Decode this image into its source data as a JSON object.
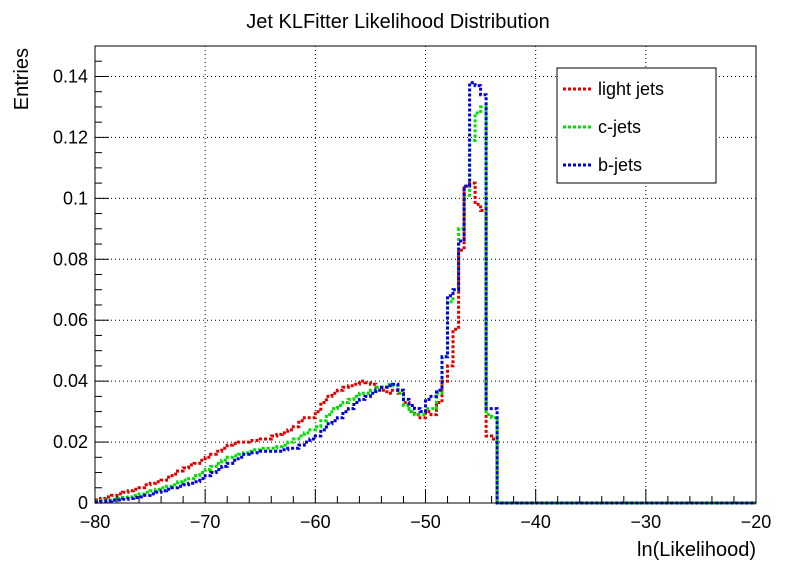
{
  "chart_data": {
    "type": "line",
    "title": "Jet KLFitter Likelihood Distribution",
    "xlabel": "ln(Likelihood)",
    "ylabel": "Entries",
    "xlim": [
      -80,
      -20
    ],
    "ylim": [
      0,
      0.15
    ],
    "x_ticks": [
      -80,
      -70,
      -60,
      -50,
      -40,
      -30,
      -20
    ],
    "x_tick_labels": [
      "−80",
      "−70",
      "−60",
      "−50",
      "−40",
      "−30",
      "−20"
    ],
    "y_ticks": [
      0,
      0.02,
      0.04,
      0.06,
      0.08,
      0.1,
      0.12,
      0.14
    ],
    "y_tick_labels": [
      "0",
      "0.02",
      "0.04",
      "0.06",
      "0.08",
      "0.1",
      "0.12",
      "0.14"
    ],
    "grid": true,
    "legend_position": "top-right",
    "bin_width": 0.5,
    "x": [
      -80,
      -79.5,
      -79,
      -78.5,
      -78,
      -77.5,
      -77,
      -76.5,
      -76,
      -75.5,
      -75,
      -74.5,
      -74,
      -73.5,
      -73,
      -72.5,
      -72,
      -71.5,
      -71,
      -70.5,
      -70,
      -69.5,
      -69,
      -68.5,
      -68,
      -67.5,
      -67,
      -66.5,
      -66,
      -65.5,
      -65,
      -64.5,
      -64,
      -63.5,
      -63,
      -62.5,
      -62,
      -61.5,
      -61,
      -60.5,
      -60,
      -59.5,
      -59,
      -58.5,
      -58,
      -57.5,
      -57,
      -56.5,
      -56,
      -55.5,
      -55,
      -54.5,
      -54,
      -53.5,
      -53,
      -52.5,
      -52,
      -51.5,
      -51,
      -50.5,
      -50,
      -49.5,
      -49,
      -48.5,
      -48,
      -47.5,
      -47,
      -46.5,
      -46,
      -45.5,
      -45,
      -44.5,
      -44,
      -43.5,
      -43
    ],
    "series": [
      {
        "name": "light jets",
        "color": "#e00000",
        "values": [
          0.001,
          0.0015,
          0.002,
          0.0025,
          0.003,
          0.0035,
          0.004,
          0.0045,
          0.005,
          0.006,
          0.0065,
          0.007,
          0.0075,
          0.0085,
          0.0095,
          0.0105,
          0.0115,
          0.0125,
          0.013,
          0.014,
          0.015,
          0.016,
          0.017,
          0.018,
          0.019,
          0.0195,
          0.02,
          0.02,
          0.0205,
          0.0205,
          0.021,
          0.021,
          0.022,
          0.0225,
          0.023,
          0.024,
          0.025,
          0.027,
          0.028,
          0.028,
          0.03,
          0.033,
          0.035,
          0.036,
          0.037,
          0.038,
          0.0385,
          0.039,
          0.04,
          0.0395,
          0.039,
          0.038,
          0.037,
          0.036,
          0.037,
          0.036,
          0.033,
          0.03,
          0.029,
          0.028,
          0.03,
          0.029,
          0.033,
          0.04,
          0.045,
          0.057,
          0.083,
          0.104,
          0.105,
          0.098,
          0.096,
          0.022,
          0.021,
          0.0,
          0.0
        ]
      },
      {
        "name": "c-jets",
        "color": "#00e000",
        "values": [
          0.0005,
          0.0008,
          0.001,
          0.0012,
          0.0015,
          0.0018,
          0.002,
          0.0025,
          0.003,
          0.0035,
          0.004,
          0.0045,
          0.005,
          0.0055,
          0.006,
          0.007,
          0.0075,
          0.008,
          0.009,
          0.01,
          0.011,
          0.012,
          0.013,
          0.014,
          0.015,
          0.0155,
          0.016,
          0.0165,
          0.017,
          0.0175,
          0.018,
          0.018,
          0.018,
          0.0185,
          0.019,
          0.02,
          0.021,
          0.022,
          0.023,
          0.024,
          0.025,
          0.027,
          0.029,
          0.031,
          0.032,
          0.033,
          0.034,
          0.035,
          0.036,
          0.036,
          0.037,
          0.038,
          0.038,
          0.039,
          0.0385,
          0.036,
          0.032,
          0.03,
          0.029,
          0.029,
          0.031,
          0.031,
          0.036,
          0.048,
          0.066,
          0.07,
          0.09,
          0.101,
          0.119,
          0.128,
          0.13,
          0.029,
          0.028,
          0.0,
          0.0
        ]
      },
      {
        "name": "b-jets",
        "color": "#0000e0",
        "values": [
          0.0003,
          0.0005,
          0.0007,
          0.0009,
          0.001,
          0.0012,
          0.0015,
          0.0018,
          0.002,
          0.0025,
          0.003,
          0.0035,
          0.004,
          0.0045,
          0.005,
          0.0055,
          0.006,
          0.0065,
          0.007,
          0.008,
          0.009,
          0.01,
          0.011,
          0.012,
          0.013,
          0.014,
          0.015,
          0.016,
          0.0165,
          0.0165,
          0.017,
          0.017,
          0.017,
          0.017,
          0.0175,
          0.018,
          0.018,
          0.019,
          0.02,
          0.021,
          0.022,
          0.024,
          0.026,
          0.027,
          0.028,
          0.03,
          0.031,
          0.033,
          0.034,
          0.035,
          0.036,
          0.037,
          0.038,
          0.0385,
          0.039,
          0.037,
          0.034,
          0.032,
          0.031,
          0.03,
          0.034,
          0.035,
          0.037,
          0.048,
          0.068,
          0.07,
          0.086,
          0.104,
          0.138,
          0.137,
          0.134,
          0.031,
          0.031,
          0.0,
          0.0
        ]
      }
    ]
  }
}
